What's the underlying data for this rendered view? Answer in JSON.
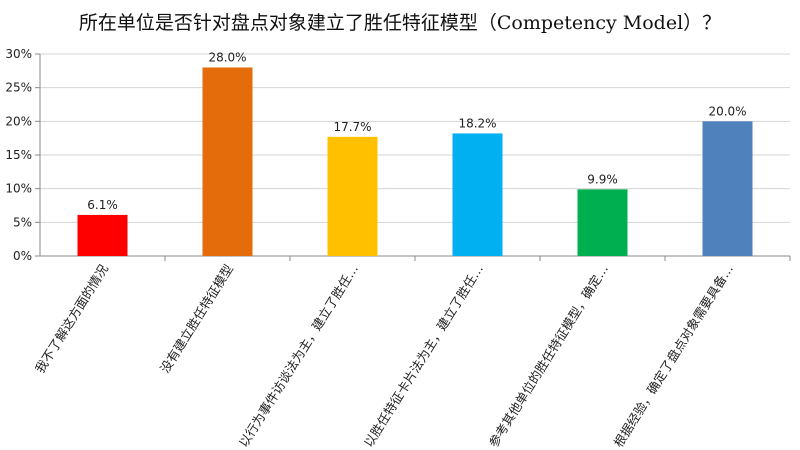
{
  "chart_data": {
    "type": "bar",
    "title": "所在单位是否针对盘点对象建立了胜任特征模型（Competency Model）？",
    "xlabel": "",
    "ylabel": "",
    "ylim": [
      0,
      30
    ],
    "y_ticks": [
      "0%",
      "5%",
      "10%",
      "15%",
      "20%",
      "25%",
      "30%"
    ],
    "grid": true,
    "categories": [
      "我不了解这方面的情况",
      "没有建立胜任特征模型",
      "以行为事件访谈法为主，建立了胜任…",
      "以胜任特征卡片法为主，建立了胜任…",
      "参考其他单位的胜任特征模型，确定…",
      "根据经验，确定了盘点对象需要具备…"
    ],
    "values": [
      6.1,
      28.0,
      17.7,
      18.2,
      9.9,
      20.0
    ],
    "value_labels": [
      "6.1%",
      "28.0%",
      "17.7%",
      "18.2%",
      "9.9%",
      "20.0%"
    ],
    "colors": [
      "#ff0000",
      "#e46c0a",
      "#ffc000",
      "#00b0f0",
      "#00b050",
      "#4f81bd"
    ]
  }
}
